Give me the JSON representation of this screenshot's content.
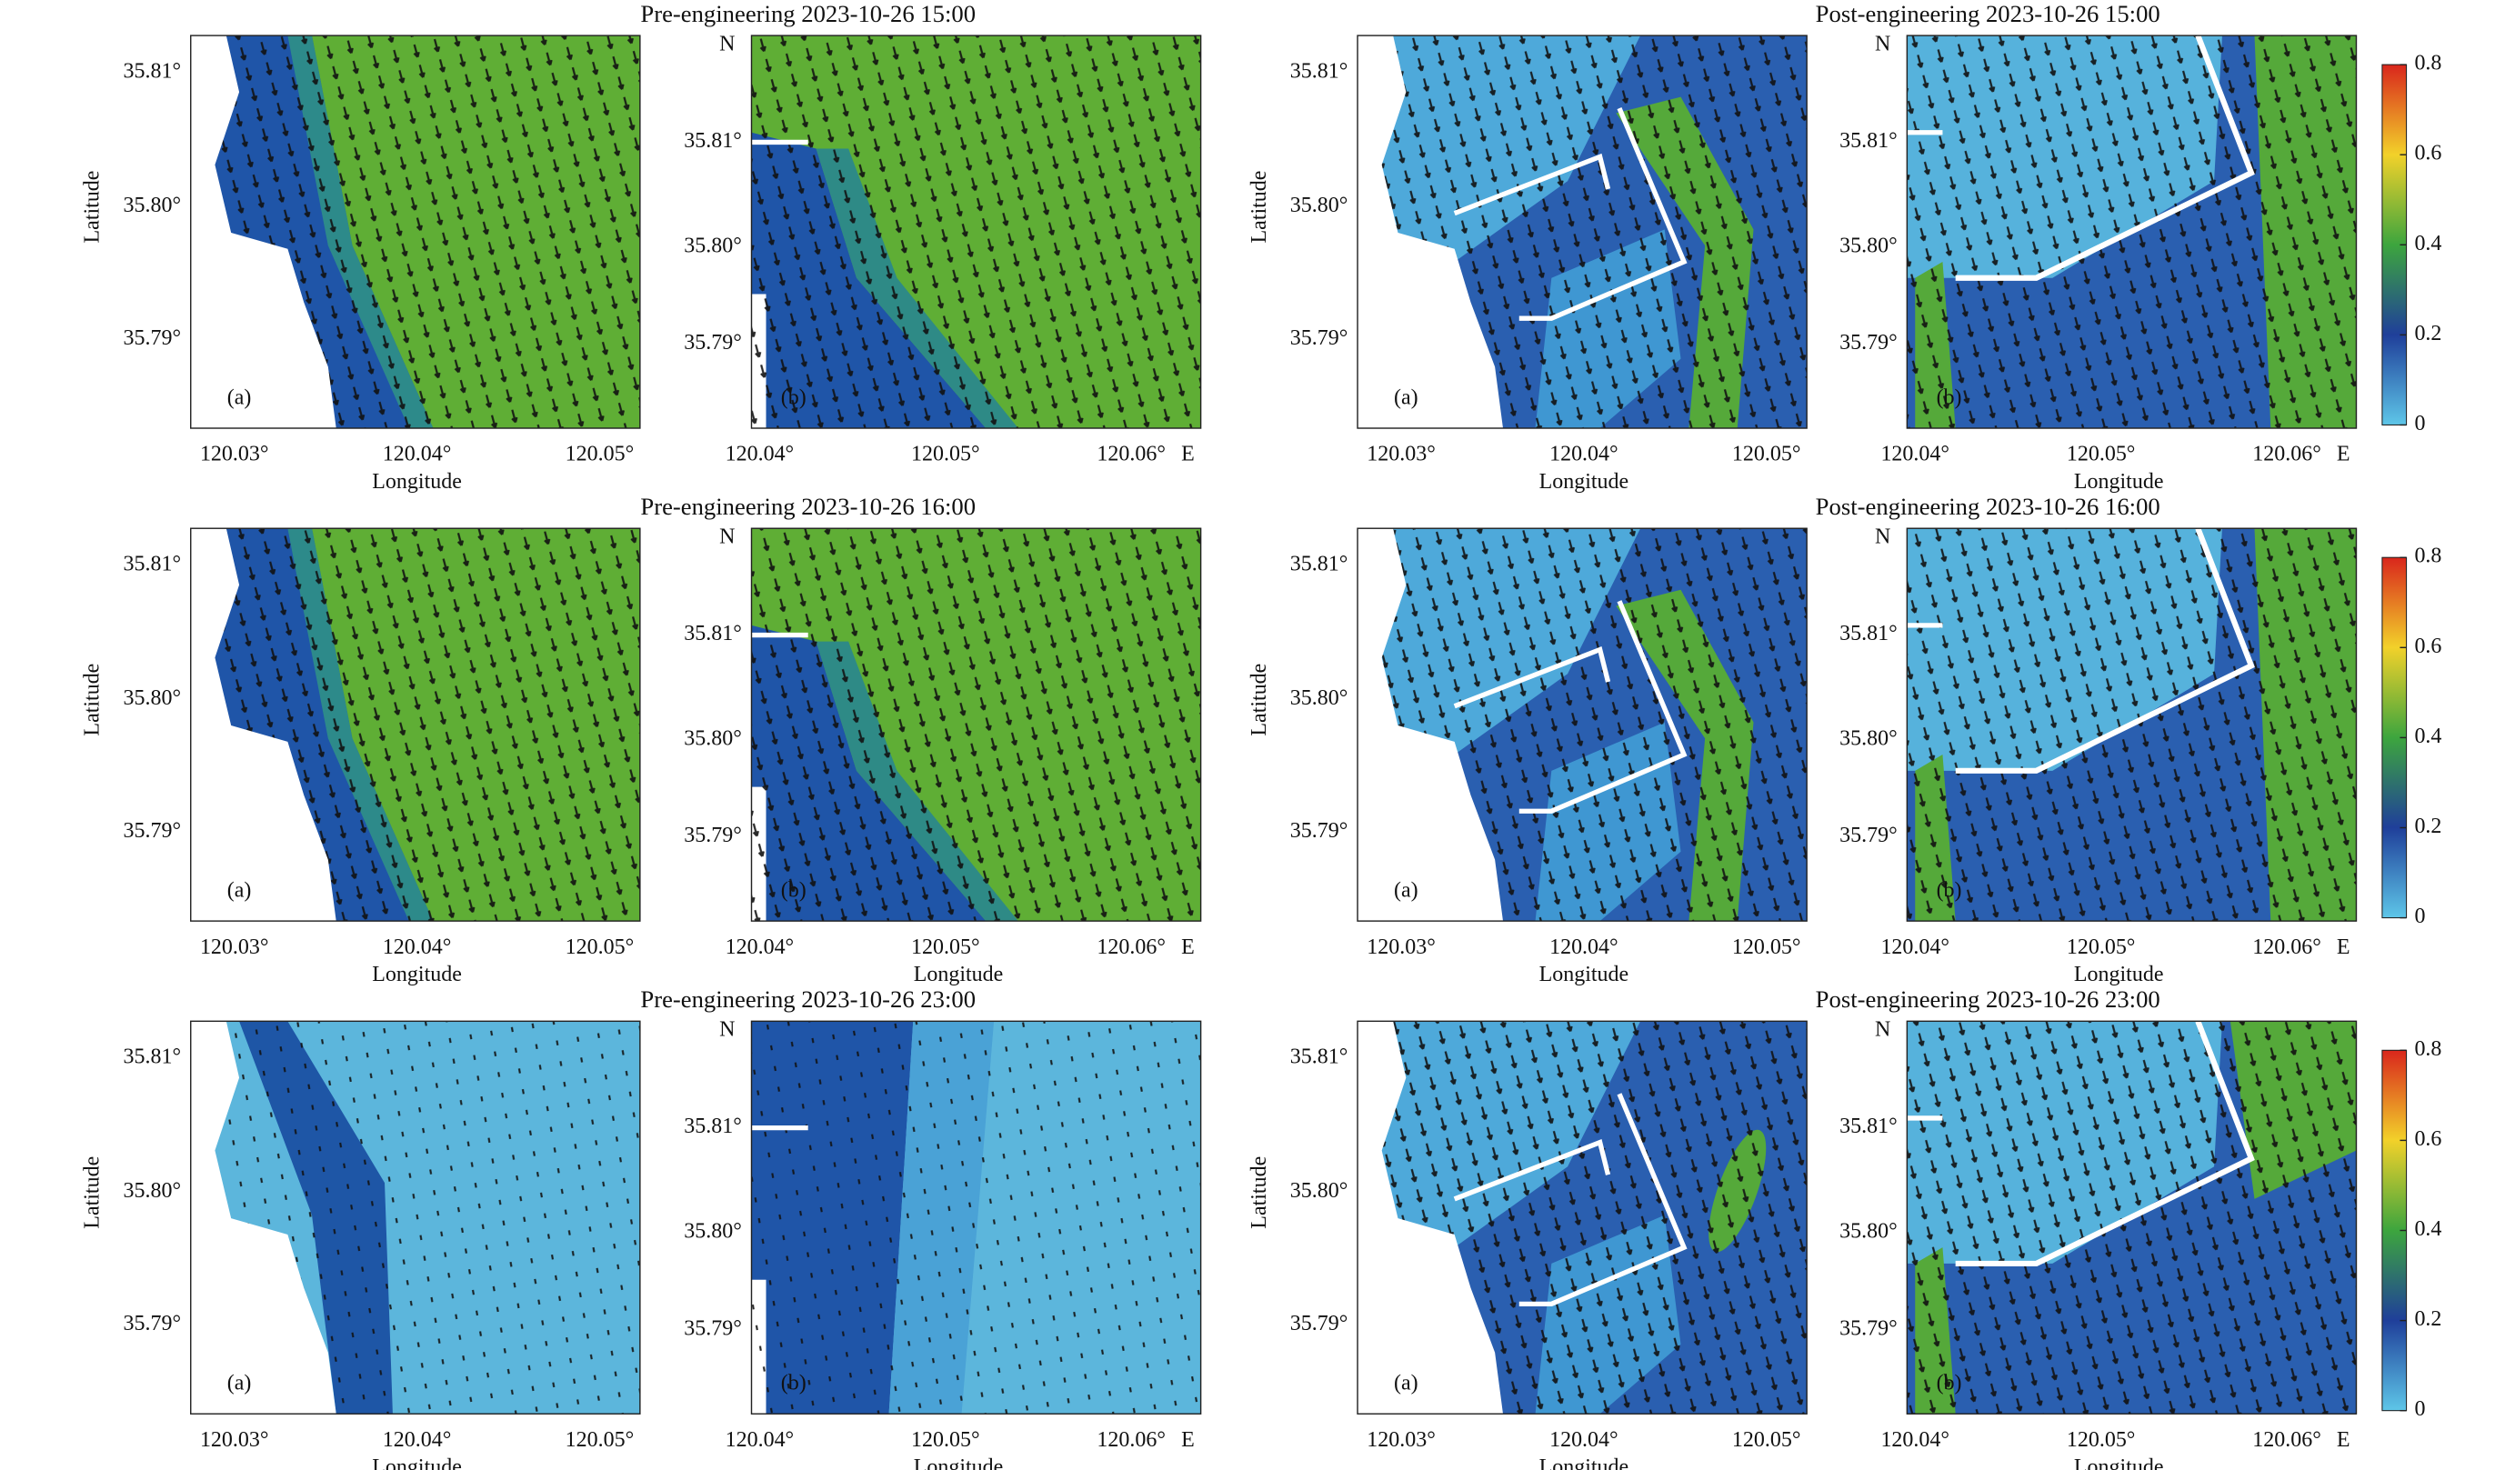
{
  "rows": [
    {
      "pre_title": "Pre-engineering 2023-10-26 15:00",
      "post_title": "Post-engineering 2023-10-26 15:00"
    },
    {
      "pre_title": "Pre-engineering 2023-10-26 16:00",
      "post_title": "Post-engineering 2023-10-26 16:00"
    },
    {
      "pre_title": "Pre-engineering 2023-10-26 23:00",
      "post_title": "Post-engineering 2023-10-26 23:00"
    }
  ],
  "panel_a": {
    "label": "(a)",
    "ylabel": "Latitude",
    "xlabel": "Longitude",
    "yticks": [
      "35.81°",
      "35.80°",
      "35.79°"
    ],
    "xticks": [
      "120.03°",
      "120.04°",
      "120.05°"
    ]
  },
  "panel_b": {
    "label": "(b)",
    "north": "N",
    "east": "E",
    "xlabel": "Longitude",
    "yticks": [
      "35.81°",
      "35.80°",
      "35.79°"
    ],
    "xticks": [
      "120.04°",
      "120.05°",
      "120.06°"
    ]
  },
  "colorbar": {
    "ticks": [
      0,
      0.2,
      0.4,
      0.6,
      0.8
    ],
    "lim": [
      0,
      0.8
    ]
  }
}
